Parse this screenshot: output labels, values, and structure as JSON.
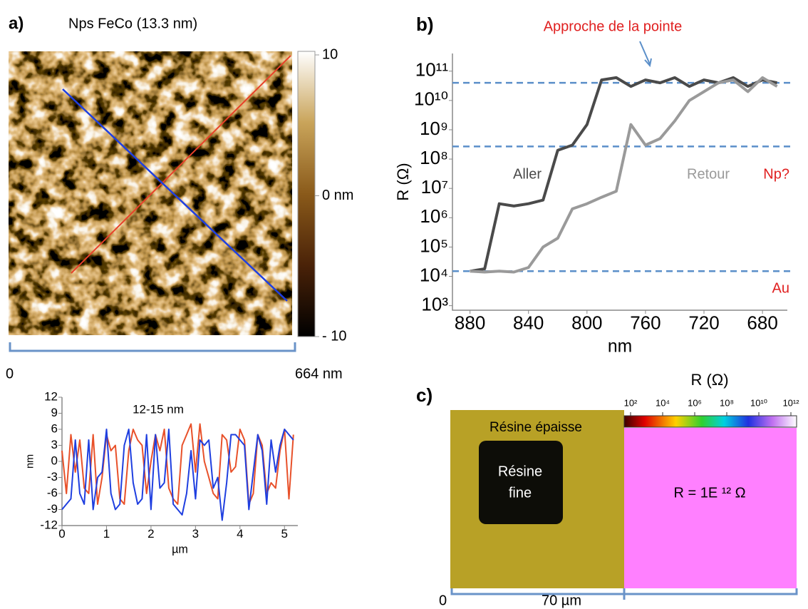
{
  "panels": {
    "a": {
      "label": "a)",
      "title": "Nps FeCo (13.3 nm)",
      "colorbar": {
        "lim": [
          -10,
          10
        ],
        "ticks": [
          10,
          {
            "value": 0,
            "label": "0 nm"
          },
          {
            "value": -10,
            "label": "- 10"
          }
        ]
      },
      "scale_start": "0",
      "scale_end": "664 nm"
    },
    "b": {
      "label": "b)"
    },
    "c": {
      "label": "c)",
      "colorbar_title": "R (Ω)",
      "colorbar": {
        "log": true,
        "lim": [
          100,
          1000000000000
        ],
        "ticks": [
          {
            "value": 100,
            "label": "10²"
          },
          {
            "value": 10000,
            "label": "10⁴"
          },
          {
            "value": 1000000,
            "label": "10⁶"
          },
          {
            "value": 100000000,
            "label": "10⁸"
          },
          {
            "value": 10000000000,
            "label": "10¹⁰"
          },
          {
            "value": 1000000000000,
            "label": "10¹²"
          }
        ]
      },
      "thick_resin": "Résine épaisse",
      "thin_resin_1": "Résine",
      "thin_resin_2": "fine",
      "resistance": "R = 1E ¹² Ω",
      "scale_start": "0",
      "scale_end": "70 µm"
    }
  },
  "chart_data": [
    {
      "type": "line",
      "title": "12-15 nm",
      "xlabel": "µm",
      "ylabel": "nm",
      "x": [
        0,
        0.1,
        0.2,
        0.3,
        0.4,
        0.5,
        0.6,
        0.7,
        0.8,
        0.9,
        1,
        1.1,
        1.2,
        1.3,
        1.4,
        1.5,
        1.6,
        1.7,
        1.8,
        1.9,
        2,
        2.1,
        2.2,
        2.3,
        2.4,
        2.5,
        2.6,
        2.7,
        2.8,
        2.9,
        3,
        3.1,
        3.2,
        3.3,
        3.4,
        3.5,
        3.6,
        3.7,
        3.8,
        3.9,
        4,
        4.1,
        4.2,
        4.3,
        4.4,
        4.5,
        4.6,
        4.7,
        4.8,
        4.9,
        5,
        5.1,
        5.2
      ],
      "series": [
        {
          "color": "#e8512a",
          "values": [
            2,
            -6,
            5,
            -2,
            4,
            -5,
            -6,
            5,
            -8,
            -3,
            5,
            2,
            3,
            -7,
            -8,
            2,
            6,
            4,
            3,
            -6,
            0,
            5,
            2,
            6,
            -5,
            -7,
            -8,
            3,
            5,
            7,
            -2,
            7,
            0,
            -3,
            -6,
            -7,
            5,
            4,
            -2,
            -1,
            6,
            4,
            -8,
            -6,
            5,
            3,
            -6,
            -4,
            -5,
            2,
            6,
            -7,
            5
          ]
        },
        {
          "color": "#1f3fe0",
          "values": [
            -9,
            -8,
            -7,
            4,
            -6,
            -8,
            4,
            -9,
            -3,
            -2,
            6,
            -6,
            -9,
            -8,
            3,
            6,
            -4,
            -8,
            -7,
            5,
            -9,
            5,
            -5,
            -4,
            6,
            -8,
            -9,
            -10,
            -6,
            2,
            -7,
            4,
            3,
            4,
            -5,
            -3,
            -11,
            -4,
            5,
            5,
            4,
            3,
            -9,
            -2,
            5,
            2,
            -8,
            4,
            -2,
            3,
            6,
            5,
            4
          ]
        }
      ],
      "xlim": [
        0,
        5.3
      ],
      "ylim": [
        -12,
        12
      ],
      "xticks": [
        0,
        1,
        2,
        3,
        4,
        5
      ],
      "yticks": [
        -12,
        -9,
        -6,
        -3,
        0,
        3,
        6,
        9,
        12
      ]
    },
    {
      "type": "line",
      "log_y": true,
      "xlabel": "nm",
      "ylabel": "R (Ω)",
      "x": [
        880,
        870,
        860,
        850,
        840,
        830,
        820,
        810,
        800,
        790,
        780,
        770,
        760,
        750,
        740,
        730,
        720,
        710,
        700,
        690,
        680,
        670
      ],
      "series": [
        {
          "name": "Aller",
          "color": "#4a4a4a",
          "values": [
            15000,
            18000,
            3000000,
            2500000,
            3000000,
            4000000,
            200000000,
            300000000,
            1500000000,
            50000000000,
            60000000000,
            30000000000,
            50000000000,
            40000000000,
            60000000000,
            30000000000,
            50000000000,
            40000000000,
            60000000000,
            30000000000,
            50000000000,
            40000000000
          ]
        },
        {
          "name": "Retour",
          "color": "#9a9a9a",
          "values": [
            15000,
            14000,
            15000,
            14000,
            20000,
            100000,
            200000,
            2000000,
            3000000,
            5000000,
            8000000,
            1500000000,
            300000000,
            500000000,
            2000000000,
            10000000000,
            20000000000,
            40000000000,
            50000000000,
            20000000000,
            60000000000,
            30000000000
          ]
        }
      ],
      "reference_lines": [
        40000000000,
        270000000,
        15000
      ],
      "reference_color": "#5b8fc9",
      "annotations": [
        "Approche de la pointe",
        "Np?",
        "Au"
      ],
      "annotation_color": "#e02020",
      "xlim": [
        892,
        663
      ],
      "ylim": [
        700,
        400000000000
      ],
      "xticks": [
        880,
        840,
        800,
        760,
        720,
        680
      ],
      "yticks": [
        {
          "value": 1000,
          "label": "10³"
        },
        {
          "value": 10000,
          "label": "10⁴"
        },
        {
          "value": 100000,
          "label": "10⁵"
        },
        {
          "value": 1000000,
          "label": "10⁶"
        },
        {
          "value": 10000000,
          "label": "10⁷"
        },
        {
          "value": 100000000,
          "label": "10⁸"
        },
        {
          "value": 1000000000,
          "label": "10⁹"
        },
        {
          "value": 10000000000,
          "label": "10¹⁰"
        },
        {
          "value": 100000000000,
          "label": "10¹¹"
        }
      ]
    }
  ]
}
